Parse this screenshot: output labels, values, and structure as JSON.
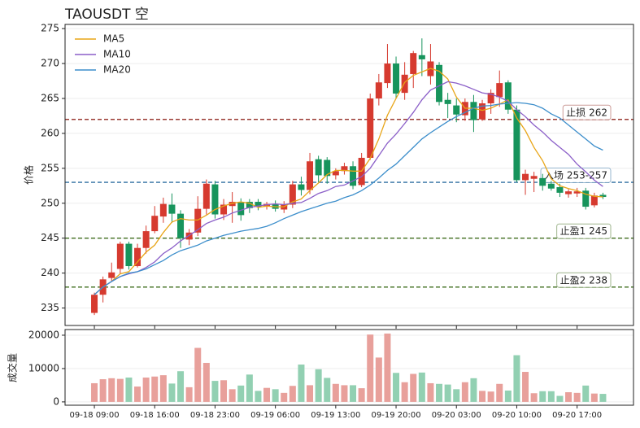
{
  "chart_data": [
    {
      "type": "candlestick",
      "title": "TAOUSDT  空",
      "ylabel": "价格",
      "up_color": "#d63a2f",
      "down_color": "#17945c",
      "open": [
        234.3,
        236.9,
        239.3,
        240.6,
        244.2,
        241.0,
        243.6,
        246.0,
        248.1,
        249.8,
        248.5,
        244.8,
        245.8,
        249.2,
        252.7,
        248.4,
        249.6,
        250.1,
        250.2,
        250.2,
        249.5,
        249.9,
        249.1,
        249.8,
        252.7,
        251.9,
        256.3,
        256.2,
        254.0,
        254.6,
        255.3,
        252.6,
        256.5,
        265.0,
        267.2,
        270.0,
        265.8,
        268.5,
        271.2,
        268.2,
        269.8,
        264.8,
        264.0,
        262.6,
        264.5,
        262.0,
        264.3,
        265.2,
        267.3,
        263.4,
        253.3,
        253.5,
        253.6,
        252.8,
        252.3,
        251.3,
        251.4,
        251.8,
        249.7,
        251.2
      ],
      "high": [
        237.2,
        239.5,
        241.5,
        244.5,
        244.5,
        244.2,
        246.8,
        249.6,
        250.8,
        251.4,
        249.0,
        246.3,
        251.0,
        253.4,
        253.2,
        250.6,
        251.6,
        250.7,
        250.6,
        250.6,
        250.2,
        250.4,
        250.3,
        253.2,
        253.8,
        257.2,
        256.8,
        256.6,
        255.0,
        255.8,
        256.0,
        257.2,
        265.7,
        268.5,
        272.8,
        271.0,
        270.2,
        271.8,
        273.6,
        272.8,
        270.2,
        265.8,
        265.0,
        265.0,
        265.5,
        264.8,
        266.3,
        269.0,
        267.6,
        264.0,
        254.8,
        254.5,
        254.2,
        253.2,
        252.8,
        252.0,
        252.2,
        252.2,
        251.5,
        251.5
      ],
      "low": [
        234.0,
        235.8,
        238.8,
        239.9,
        240.5,
        240.8,
        242.8,
        245.7,
        247.2,
        247.2,
        243.6,
        244.0,
        245.3,
        248.4,
        247.8,
        247.6,
        247.2,
        247.5,
        248.6,
        249.0,
        249.1,
        248.8,
        248.6,
        249.3,
        251.1,
        251.3,
        253.0,
        252.8,
        253.4,
        254.1,
        252.0,
        252.3,
        256.2,
        264.0,
        266.5,
        265.0,
        264.8,
        266.5,
        268.2,
        267.0,
        264.0,
        262.2,
        261.6,
        261.8,
        260.2,
        261.8,
        262.8,
        263.8,
        262.8,
        253.0,
        251.2,
        251.6,
        251.8,
        251.8,
        250.9,
        250.8,
        250.9,
        249.1,
        249.4,
        250.6
      ],
      "close": [
        236.9,
        239.1,
        240.1,
        244.2,
        241.0,
        243.6,
        246.0,
        248.2,
        249.9,
        248.5,
        245.0,
        245.8,
        249.2,
        252.8,
        248.4,
        249.8,
        250.2,
        248.3,
        249.3,
        249.5,
        249.9,
        249.2,
        249.8,
        252.7,
        251.9,
        256.0,
        254.0,
        253.9,
        254.6,
        255.3,
        252.5,
        256.5,
        265.0,
        267.3,
        270.0,
        265.7,
        268.4,
        271.5,
        270.6,
        270.3,
        264.5,
        264.2,
        262.7,
        264.5,
        261.9,
        264.3,
        265.8,
        267.2,
        263.4,
        253.3,
        254.2,
        253.9,
        252.5,
        252.1,
        251.5,
        251.7,
        251.7,
        249.5,
        251.1,
        250.9
      ],
      "series": [
        {
          "name": "MA5",
          "color": "#e8a517",
          "values": [
            236.9,
            238,
            238.8,
            239.9,
            240.2,
            241.6,
            243,
            244,
            245.8,
            247.3,
            247.8,
            247.6,
            247.6,
            248.3,
            249.1,
            249.6,
            250,
            250.2,
            250,
            249.4,
            249.6,
            249.5,
            249.5,
            250.2,
            250.6,
            251.8,
            252.9,
            254.1,
            254.7,
            254.7,
            254.6,
            254.6,
            256.4,
            259.2,
            262.6,
            265,
            267.3,
            268.3,
            268.8,
            269.3,
            268.9,
            267.8,
            265.2,
            263.6,
            263.6,
            263.3,
            263.6,
            264.2,
            264.8,
            262.2,
            260.4,
            258,
            256.1,
            253.5,
            252.5,
            252.1,
            251.8,
            251.3,
            251,
            250.9
          ]
        },
        {
          "name": "MA10",
          "color": "#8b5fc8",
          "values": [
            236.9,
            238,
            238.8,
            239.5,
            239.9,
            240.2,
            240.8,
            241.6,
            242.8,
            243.6,
            244.6,
            245.4,
            246.2,
            247.1,
            247.6,
            248,
            248.6,
            249,
            249.4,
            249.6,
            249.8,
            249.9,
            249.8,
            250,
            250.1,
            250.7,
            251.4,
            251.8,
            252.4,
            252.6,
            253.2,
            253.8,
            255,
            256.8,
            258.6,
            259.9,
            261.4,
            263,
            264.8,
            266.2,
            266.8,
            267.4,
            267.2,
            266.8,
            266.3,
            265.8,
            265.6,
            265.2,
            264.6,
            263.4,
            262.4,
            261.2,
            260.2,
            259,
            258,
            257,
            255.6,
            254.5,
            253.3,
            252.4
          ]
        },
        {
          "name": "MA20",
          "color": "#3c8ecb",
          "values": [
            236.9,
            238,
            238.8,
            239.5,
            240,
            240.2,
            240.6,
            241.2,
            241.8,
            242.6,
            243.2,
            243.6,
            244,
            244.6,
            245,
            245.4,
            245.7,
            246,
            246.2,
            246.4,
            246.7,
            247.2,
            247.8,
            248.3,
            248.8,
            249.2,
            249.6,
            250,
            250.3,
            250.8,
            251.2,
            251.8,
            252.6,
            253.6,
            254.7,
            255.6,
            256.8,
            258,
            259.2,
            260.1,
            260.9,
            261.7,
            262.4,
            263,
            263.6,
            263.9,
            264,
            264.2,
            264.3,
            264.4,
            264.3,
            264.1,
            263.6,
            262.8,
            262.2,
            261.2,
            260.2,
            259.2,
            258.2,
            257.6
          ]
        }
      ],
      "levels": [
        {
          "value": 262,
          "label": "止损 262",
          "color": "#9a3a32"
        },
        {
          "value": 253,
          "label": "入场 253-257",
          "color": "#2f6fa0"
        },
        {
          "value": 245,
          "label": "止盈1 245",
          "color": "#3f6e1e"
        },
        {
          "value": 238,
          "label": "止盈2 238",
          "color": "#3f6e1e"
        }
      ],
      "ylim": [
        232.5,
        275.6
      ],
      "yticks": [
        235,
        240,
        245,
        250,
        255,
        260,
        265,
        270,
        275
      ],
      "grid": true,
      "legend": "upper-left"
    },
    {
      "type": "volume",
      "ylabel": "成交量",
      "categories": [
        "09-18 09:00",
        null,
        null,
        null,
        null,
        null,
        null,
        "09-18 16:00",
        null,
        null,
        null,
        null,
        null,
        null,
        "09-18 23:00",
        null,
        null,
        null,
        null,
        null,
        null,
        "09-19 06:00",
        null,
        null,
        null,
        null,
        null,
        null,
        "09-19 13:00",
        null,
        null,
        null,
        null,
        null,
        null,
        "09-19 20:00",
        null,
        null,
        null,
        null,
        null,
        null,
        "09-20 03:00",
        null,
        null,
        null,
        null,
        null,
        null,
        "09-20 10:00",
        null,
        null,
        null,
        null,
        null,
        null,
        "09-20 17:00",
        null,
        null,
        null
      ],
      "values": [
        5600,
        6800,
        7100,
        6900,
        7300,
        4600,
        7300,
        7600,
        8000,
        5500,
        9200,
        4400,
        16200,
        11700,
        6300,
        6500,
        3800,
        4900,
        8200,
        3300,
        4200,
        3800,
        2700,
        4800,
        11200,
        5000,
        9800,
        7200,
        5400,
        5000,
        5000,
        4100,
        20200,
        13300,
        20500,
        8700,
        5900,
        8400,
        8800,
        5600,
        5400,
        5200,
        3800,
        5900,
        7100,
        3300,
        3100,
        5400,
        3400,
        14000,
        9000,
        2600,
        3200,
        3200,
        1800,
        2900,
        2700,
        4900,
        2500,
        2400
      ],
      "up_color": "#e8a09b",
      "down_color": "#92d0b2",
      "ylim": [
        -1000,
        21700
      ],
      "yticks": [
        0,
        10000,
        20000
      ],
      "grid": true
    }
  ]
}
